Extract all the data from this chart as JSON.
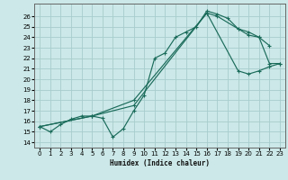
{
  "xlabel": "Humidex (Indice chaleur)",
  "bg_color": "#cce8e8",
  "grid_color": "#a8cccc",
  "line_color": "#1a6b5a",
  "xlim": [
    -0.5,
    23.5
  ],
  "ylim": [
    13.5,
    27.2
  ],
  "xticks": [
    0,
    1,
    2,
    3,
    4,
    5,
    6,
    7,
    8,
    9,
    10,
    11,
    12,
    13,
    14,
    15,
    16,
    17,
    18,
    19,
    20,
    21,
    22,
    23
  ],
  "yticks": [
    14,
    15,
    16,
    17,
    18,
    19,
    20,
    21,
    22,
    23,
    24,
    25,
    26
  ],
  "curves": [
    {
      "x": [
        0,
        1,
        2,
        3,
        4,
        5,
        6,
        7,
        8,
        9,
        10,
        11,
        12,
        13,
        14,
        15,
        16,
        17,
        18,
        19,
        20,
        21,
        22
      ],
      "y": [
        15.5,
        15.0,
        15.7,
        16.2,
        16.5,
        16.5,
        16.3,
        14.5,
        15.3,
        17.0,
        18.5,
        22.0,
        22.5,
        24.0,
        24.5,
        25.0,
        26.5,
        26.2,
        25.8,
        24.8,
        24.2,
        24.0,
        23.2
      ]
    },
    {
      "x": [
        0,
        5,
        9,
        16,
        17,
        19,
        20,
        21,
        22,
        23
      ],
      "y": [
        15.5,
        16.5,
        17.5,
        26.3,
        26.0,
        24.8,
        24.5,
        24.0,
        21.5,
        21.5
      ]
    },
    {
      "x": [
        0,
        5,
        9,
        16,
        19,
        20,
        21,
        22,
        23
      ],
      "y": [
        15.5,
        16.5,
        18.0,
        26.3,
        20.8,
        20.5,
        20.8,
        21.2,
        21.5
      ]
    }
  ]
}
